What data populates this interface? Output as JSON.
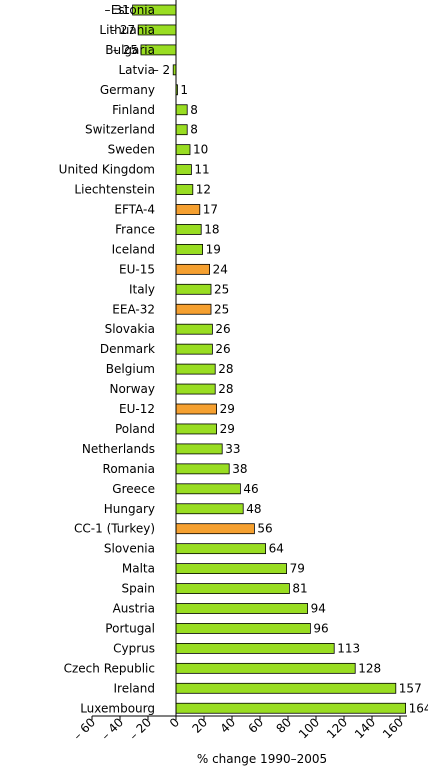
{
  "chart_data": {
    "type": "bar",
    "orientation": "horizontal",
    "title": "",
    "xlabel": "% change 1990–2005",
    "ylabel": "",
    "xlim": [
      -60,
      165
    ],
    "xticks": [
      -60,
      -40,
      -20,
      0,
      20,
      40,
      60,
      80,
      100,
      120,
      140,
      160
    ],
    "xtick_labels": [
      "– 60",
      "– 40",
      "– 20",
      "0",
      "20",
      "40",
      "60",
      "80",
      "100",
      "120",
      "140",
      "160"
    ],
    "grid": false,
    "colors": {
      "country": "#99dd22",
      "aggregate": "#f5a030",
      "outline": "#000000"
    },
    "categories": [
      "Estonia",
      "Lithuania",
      "Bulgaria",
      "Latvia",
      "Germany",
      "Finland",
      "Switzerland",
      "Sweden",
      "United Kingdom",
      "Liechtenstein",
      "EFTA-4",
      "France",
      "Iceland",
      "EU-15",
      "Italy",
      "EEA-32",
      "Slovakia",
      "Denmark",
      "Belgium",
      "Norway",
      "EU-12",
      "Poland",
      "Netherlands",
      "Romania",
      "Greece",
      "Hungary",
      "CC-1 (Turkey)",
      "Slovenia",
      "Malta",
      "Spain",
      "Austria",
      "Portugal",
      "Cyprus",
      "Czech Republic",
      "Ireland",
      "Luxembourg"
    ],
    "values": [
      -31,
      -27,
      -25,
      -2,
      1,
      8,
      8,
      10,
      11,
      12,
      17,
      18,
      19,
      24,
      25,
      25,
      26,
      26,
      28,
      28,
      29,
      29,
      33,
      38,
      46,
      48,
      56,
      64,
      79,
      81,
      94,
      96,
      113,
      128,
      157,
      164
    ],
    "value_labels": [
      "– 31",
      "– 27",
      "– 25",
      "– 2",
      "1",
      "8",
      "8",
      "10",
      "11",
      "12",
      "17",
      "18",
      "19",
      "24",
      "25",
      "25",
      "26",
      "26",
      "28",
      "28",
      "29",
      "29",
      "33",
      "38",
      "46",
      "48",
      "56",
      "64",
      "79",
      "81",
      "94",
      "96",
      "113",
      "128",
      "157",
      "164"
    ],
    "highlight": [
      false,
      false,
      false,
      false,
      false,
      false,
      false,
      false,
      false,
      false,
      true,
      false,
      false,
      true,
      false,
      true,
      false,
      false,
      false,
      false,
      true,
      false,
      false,
      false,
      false,
      false,
      true,
      false,
      false,
      false,
      false,
      false,
      false,
      false,
      false,
      false
    ]
  }
}
